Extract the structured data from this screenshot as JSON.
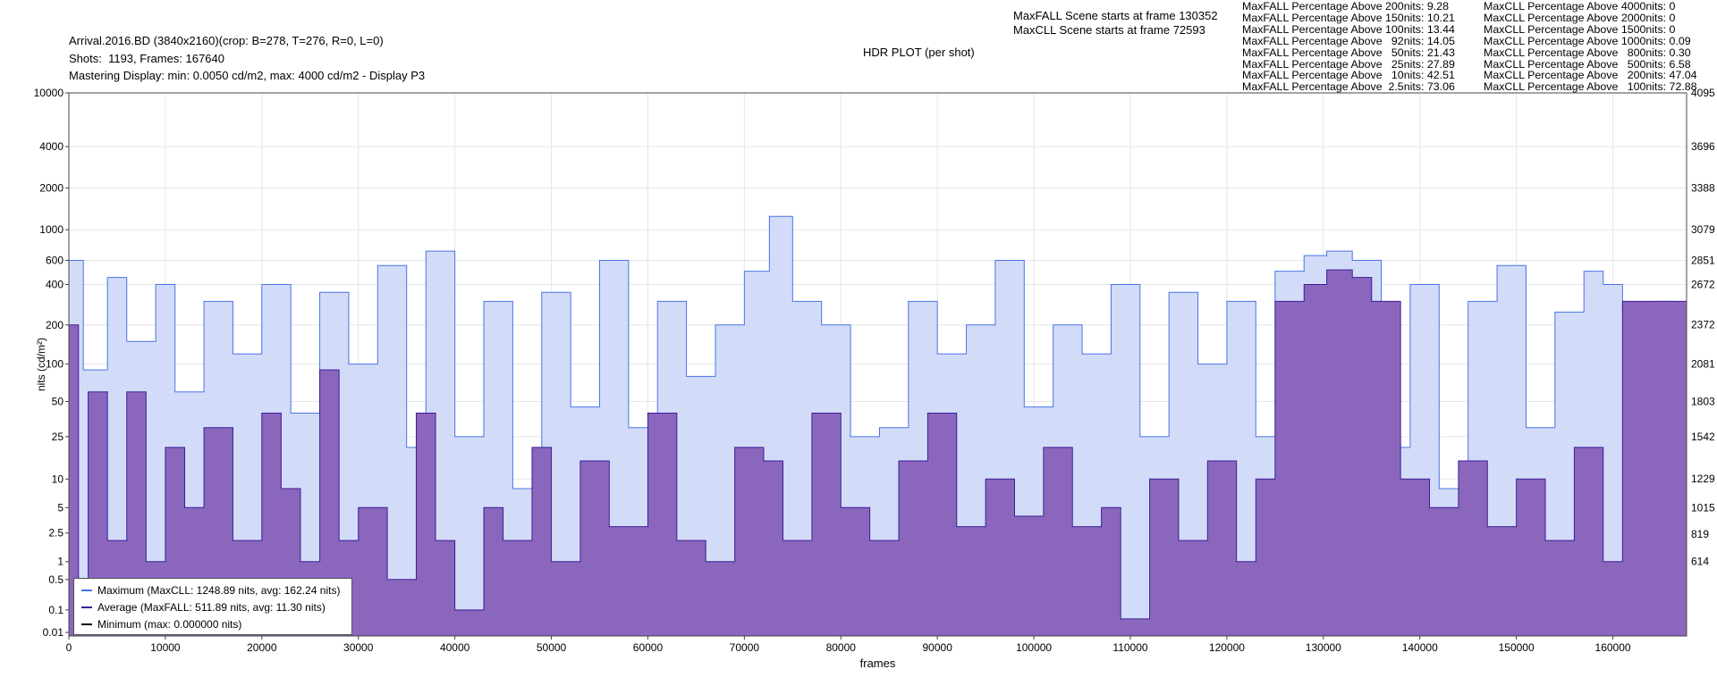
{
  "header": {
    "file_line": "Arrival.2016.BD (3840x2160)(crop: B=278, T=276, R=0, L=0)",
    "shots_line": "Shots:  1193, Frames: 167640",
    "mastering_line": "Mastering Display: min: 0.0050 cd/m2, max: 4000 cd/m2 - Display P3",
    "plot_title": "HDR PLOT (per shot)",
    "maxfall_scene": "MaxFALL Scene starts at frame 130352",
    "maxcll_scene": "MaxCLL Scene starts at frame 72593"
  },
  "stats_maxfall": [
    "MaxFALL Percentage Above 200nits: 9.28",
    "MaxFALL Percentage Above 150nits: 10.21",
    "MaxFALL Percentage Above 100nits: 13.44",
    "MaxFALL Percentage Above   92nits: 14.05",
    "MaxFALL Percentage Above   50nits: 21.43",
    "MaxFALL Percentage Above   25nits: 27.89",
    "MaxFALL Percentage Above   10nits: 42.51",
    "MaxFALL Percentage Above  2.5nits: 73.06"
  ],
  "stats_maxcll": [
    "MaxCLL Percentage Above 4000nits: 0",
    "MaxCLL Percentage Above 2000nits: 0",
    "MaxCLL Percentage Above 1500nits: 0",
    "MaxCLL Percentage Above 1000nits: 0.09",
    "MaxCLL Percentage Above   800nits: 0.30",
    "MaxCLL Percentage Above   500nits: 6.58",
    "MaxCLL Percentage Above   200nits: 47.04",
    "MaxCLL Percentage Above   100nits: 72.88"
  ],
  "legend": [
    {
      "label": "Maximum (MaxCLL: 1248.89 nits, avg: 162.24 nits)",
      "color": "#4a73e8"
    },
    {
      "label": "Average (MaxFALL: 511.89 nits, avg: 11.30 nits)",
      "color": "#3a1f9a"
    },
    {
      "label": "Minimum (max: 0.000000 nits)",
      "color": "#000000"
    }
  ],
  "colors": {
    "max_line": "#4a73e8",
    "max_fill": "#d2dcf8",
    "avg_line": "#3c1e96",
    "avg_fill": "#8b66bd",
    "grid": "#e6e6e6"
  },
  "chart_data": {
    "type": "area",
    "title": "HDR PLOT (per shot)",
    "xlabel": "frames",
    "ylabel": "nits (cd/m²)",
    "xlim": [
      0,
      167640
    ],
    "ylim": [
      0.005,
      10000
    ],
    "y_scale": "pq",
    "x_ticks": [
      0,
      10000,
      20000,
      30000,
      40000,
      50000,
      60000,
      70000,
      80000,
      90000,
      100000,
      110000,
      120000,
      130000,
      140000,
      150000,
      160000
    ],
    "y_ticks": [
      0.01,
      0.1,
      0.5,
      1,
      2.5,
      5,
      10,
      25,
      50,
      100,
      200,
      400,
      600,
      1000,
      2000,
      4000,
      10000
    ],
    "y_tick_labels": [
      "0.01",
      "0.1",
      "0.5",
      "1",
      "2.5",
      "5",
      "10",
      "25",
      "50",
      "100",
      "200",
      "400",
      "600",
      "1000",
      "2000",
      "4000",
      "10000"
    ],
    "right_ticks": [
      614,
      819,
      1015,
      1229,
      1542,
      1803,
      2081,
      2372,
      2672,
      2851,
      3079,
      3388,
      3696,
      4095
    ],
    "grid": true,
    "legend_position": "bottom-left",
    "series": [
      {
        "name": "Maximum (MaxCLL: 1248.89 nits, avg: 162.24 nits)",
        "x": [
          0,
          1500,
          4000,
          6000,
          9000,
          11000,
          14000,
          17000,
          20000,
          23000,
          26000,
          29000,
          32000,
          35000,
          37000,
          40000,
          43000,
          46000,
          49000,
          52000,
          55000,
          58000,
          61000,
          64000,
          67000,
          70000,
          72593,
          75000,
          78000,
          81000,
          84000,
          87000,
          90000,
          93000,
          96000,
          99000,
          102000,
          105000,
          108000,
          111000,
          114000,
          117000,
          120000,
          123000,
          125000,
          128000,
          130352,
          133000,
          136000,
          139000,
          142000,
          145000,
          148000,
          151000,
          154000,
          157000,
          159000,
          161000,
          164000,
          166500,
          167640
        ],
        "values": [
          600,
          90,
          450,
          150,
          400,
          60,
          300,
          120,
          400,
          40,
          350,
          100,
          550,
          20,
          700,
          25,
          300,
          8,
          350,
          45,
          600,
          30,
          300,
          80,
          200,
          500,
          1248.89,
          300,
          200,
          25,
          30,
          300,
          120,
          200,
          600,
          45,
          200,
          120,
          400,
          25,
          350,
          100,
          300,
          25,
          500,
          650,
          700,
          600,
          20,
          400,
          8,
          300,
          550,
          30,
          250,
          500,
          400,
          250,
          300,
          250,
          350
        ]
      },
      {
        "name": "Average (MaxFALL: 511.89 nits, avg: 11.30 nits)",
        "x": [
          0,
          1000,
          2000,
          4000,
          6000,
          8000,
          10000,
          12000,
          14000,
          17000,
          20000,
          22000,
          24000,
          26000,
          28000,
          30000,
          33000,
          36000,
          38000,
          40000,
          43000,
          45000,
          48000,
          50000,
          53000,
          56000,
          60000,
          63000,
          66000,
          69000,
          72000,
          74000,
          77000,
          80000,
          83000,
          86000,
          89000,
          92000,
          95000,
          98000,
          101000,
          104000,
          107000,
          109000,
          112000,
          115000,
          118000,
          121000,
          123000,
          125000,
          128000,
          130352,
          133000,
          135000,
          138000,
          141000,
          144000,
          147000,
          150000,
          153000,
          156000,
          159000,
          161000,
          164000,
          166500,
          167640
        ],
        "values": [
          200,
          0.5,
          60,
          2,
          60,
          1,
          20,
          5,
          30,
          2,
          40,
          8,
          1,
          90,
          2,
          5,
          0.5,
          40,
          2,
          0.1,
          5,
          2,
          20,
          1,
          15,
          3,
          40,
          2,
          1,
          20,
          15,
          2,
          40,
          5,
          2,
          15,
          40,
          3,
          10,
          4,
          20,
          3,
          5,
          0.05,
          10,
          2,
          15,
          1,
          10,
          300,
          400,
          511.89,
          450,
          300,
          10,
          5,
          15,
          3,
          10,
          2,
          20,
          1,
          300,
          300,
          300,
          0.01
        ]
      }
    ]
  }
}
